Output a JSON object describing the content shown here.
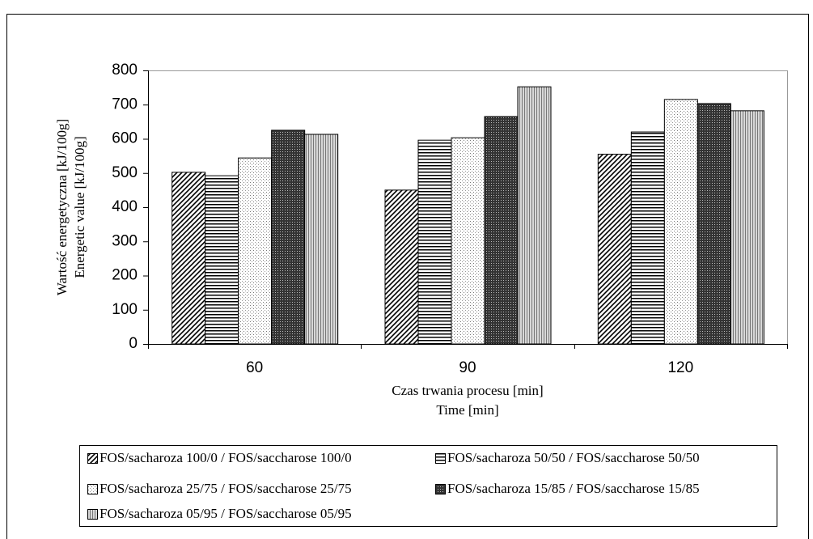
{
  "chart_data": {
    "type": "bar",
    "y_label_lines": [
      "Wartość energetyczna [kJ/100g]",
      "Energetic value [kJ/100g]"
    ],
    "x_label_lines": [
      "Czas trwania procesu [min]",
      "Time [min]"
    ],
    "categories": [
      "60",
      "90",
      "120"
    ],
    "series": [
      {
        "name": "FOS/sacharoza 100/0 / FOS/saccharose 100/0",
        "color": "#000000",
        "pattern": "diagonal",
        "values": [
          502,
          450,
          555
        ]
      },
      {
        "name": "FOS/sacharoza 50/50 / FOS/saccharose 50/50",
        "color": "#000000",
        "pattern": "horizontal",
        "values": [
          492,
          596,
          620
        ]
      },
      {
        "name": "FOS/sacharoza 25/75 / FOS/saccharose 25/75",
        "color": "#777777",
        "pattern": "dots",
        "values": [
          544,
          603,
          715
        ]
      },
      {
        "name": "FOS/sacharoza 15/85 / FOS/saccharose 15/85",
        "color": "#444444",
        "pattern": "dense",
        "values": [
          625,
          665,
          703
        ]
      },
      {
        "name": "FOS/sacharoza 05/95 / FOS/saccharose 05/95",
        "color": "#8a8a8a",
        "pattern": "vertical",
        "values": [
          613,
          752,
          682
        ]
      }
    ],
    "ylim": [
      0,
      800
    ],
    "yticks": [
      0,
      100,
      200,
      300,
      400,
      500,
      600,
      700,
      800
    ],
    "grid": false
  }
}
